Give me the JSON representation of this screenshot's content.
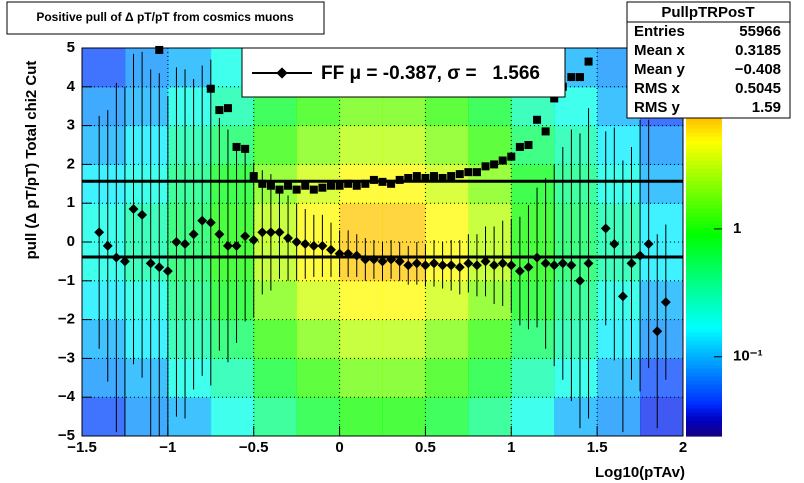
{
  "chart_data": {
    "type": "profile2d",
    "title": "Positive pull of Δ pT/pT from cosmics muons",
    "x_label": "Log10(pTAv)",
    "y_label": "pull (Δ pT/pT)  Total chi2 Cut",
    "xlim": [
      -1.5,
      2
    ],
    "ylim": [
      -5,
      5
    ],
    "xticks": [
      {
        "value": -1.5,
        "label": "−1.5"
      },
      {
        "value": -1,
        "label": "−1"
      },
      {
        "value": -0.5,
        "label": "−0.5"
      },
      0,
      0.5,
      1,
      1.5,
      2
    ],
    "yticks": [
      {
        "value": -5,
        "label": "−5"
      },
      {
        "value": -4,
        "label": "−4"
      },
      {
        "value": -3,
        "label": "−3"
      },
      {
        "value": -2,
        "label": "−2"
      },
      {
        "value": -1,
        "label": "−1"
      },
      0,
      1,
      2,
      3,
      4,
      5
    ],
    "grid": true,
    "zlim": [
      0.024,
      26
    ],
    "zticks": [
      1,
      {
        "value": 0.1,
        "label": "10⁻¹"
      }
    ],
    "log_z": true,
    "heatmap": {
      "x_bins": [
        -1.5,
        -1.25,
        -1,
        -0.75,
        -0.5,
        -0.25,
        0,
        0.25,
        0.5,
        0.75,
        1,
        1.25,
        1.5,
        1.75,
        2
      ],
      "y_bins": [
        -5,
        -4,
        -3,
        -2,
        -1,
        0,
        1,
        2,
        3,
        4,
        5
      ],
      "values": [
        [
          0.05,
          0.08,
          0.1,
          0.2,
          0.4,
          0.7,
          1,
          1,
          0.7,
          0.4,
          0.2,
          0.1,
          0.08,
          0.04
        ],
        [
          0.08,
          0.1,
          0.2,
          0.3,
          0.7,
          1.2,
          1.8,
          1.8,
          1.2,
          0.7,
          0.3,
          0.2,
          0.1,
          0.05
        ],
        [
          0.1,
          0.15,
          0.3,
          0.5,
          1.2,
          2,
          3,
          3,
          2,
          1.2,
          0.5,
          0.3,
          0.15,
          0.08
        ],
        [
          0.15,
          0.2,
          0.4,
          0.8,
          2,
          3.5,
          5,
          5,
          3.5,
          2,
          0.8,
          0.4,
          0.2,
          0.1
        ],
        [
          0.2,
          0.3,
          0.5,
          1,
          3,
          5,
          7,
          7,
          5,
          3,
          1,
          0.5,
          0.3,
          0.15
        ],
        [
          0.2,
          0.3,
          0.5,
          1,
          3,
          5,
          7,
          7,
          5,
          3,
          1,
          0.5,
          0.3,
          0.15
        ],
        [
          0.15,
          0.2,
          0.4,
          0.8,
          2,
          3.5,
          5,
          5,
          3.5,
          2,
          0.8,
          0.4,
          0.2,
          0.1
        ],
        [
          0.1,
          0.15,
          0.3,
          0.5,
          1.2,
          2,
          3,
          3,
          2,
          1.2,
          0.5,
          0.3,
          0.15,
          0.08
        ],
        [
          0.08,
          0.1,
          0.2,
          0.3,
          0.7,
          1.2,
          1.8,
          1.8,
          1.2,
          0.7,
          0.3,
          0.2,
          0.1,
          0.05
        ],
        [
          0.05,
          0.08,
          0.1,
          0.2,
          0.4,
          0.7,
          1,
          1,
          0.7,
          0.4,
          0.2,
          0.1,
          0.08,
          0.04
        ]
      ]
    },
    "series": [
      {
        "marker": "square",
        "color": "#000000",
        "x": [
          -1.05,
          -0.75,
          -0.7,
          -0.65,
          -0.6,
          -0.55,
          -0.5,
          -0.45,
          -0.4,
          -0.35,
          -0.3,
          -0.25,
          -0.2,
          -0.15,
          -0.1,
          -0.05,
          0,
          0.05,
          0.1,
          0.15,
          0.2,
          0.25,
          0.3,
          0.35,
          0.4,
          0.45,
          0.5,
          0.55,
          0.6,
          0.65,
          0.7,
          0.75,
          0.8,
          0.85,
          0.9,
          0.95,
          1.0,
          1.05,
          1.1,
          1.15,
          1.2,
          1.25,
          1.3,
          1.35,
          1.4,
          1.45
        ],
        "values": [
          4.95,
          3.95,
          3.4,
          3.45,
          2.45,
          2.4,
          1.7,
          1.5,
          1.45,
          1.35,
          1.45,
          1.35,
          1.45,
          1.35,
          1.4,
          1.45,
          1.45,
          1.5,
          1.45,
          1.5,
          1.6,
          1.55,
          1.5,
          1.6,
          1.65,
          1.7,
          1.65,
          1.7,
          1.65,
          1.7,
          1.75,
          1.8,
          1.8,
          1.95,
          2.0,
          2.1,
          2.2,
          2.45,
          2.5,
          3.15,
          2.85,
          3.7,
          4.0,
          4.25,
          4.25,
          4.65
        ]
      },
      {
        "name": "FF μ = -0.387, σ =   1.566",
        "marker": "diamond",
        "color": "#000000",
        "x": [
          -1.4,
          -1.35,
          -1.3,
          -1.25,
          -1.2,
          -1.15,
          -1.1,
          -1.05,
          -1.0,
          -0.95,
          -0.9,
          -0.85,
          -0.8,
          -0.75,
          -0.7,
          -0.65,
          -0.6,
          -0.55,
          -0.5,
          -0.45,
          -0.4,
          -0.35,
          -0.3,
          -0.25,
          -0.2,
          -0.15,
          -0.1,
          -0.05,
          0,
          0.05,
          0.1,
          0.15,
          0.2,
          0.25,
          0.3,
          0.35,
          0.4,
          0.45,
          0.5,
          0.55,
          0.6,
          0.65,
          0.7,
          0.75,
          0.8,
          0.85,
          0.9,
          0.95,
          1.0,
          1.05,
          1.1,
          1.15,
          1.2,
          1.25,
          1.3,
          1.35,
          1.4,
          1.45,
          1.55,
          1.6,
          1.65,
          1.7,
          1.75,
          1.8,
          1.85,
          1.9
        ],
        "values": [
          0.25,
          -0.1,
          -0.4,
          -0.5,
          0.85,
          0.7,
          -0.55,
          -0.65,
          -0.75,
          0,
          -0.05,
          0.2,
          0.55,
          0.5,
          0.2,
          -0.1,
          -0.1,
          0.15,
          0.05,
          0.25,
          0.25,
          0.25,
          0.1,
          0,
          -0.05,
          -0.1,
          -0.1,
          -0.2,
          -0.3,
          -0.3,
          -0.35,
          -0.45,
          -0.45,
          -0.5,
          -0.45,
          -0.5,
          -0.6,
          -0.55,
          -0.6,
          -0.55,
          -0.6,
          -0.6,
          -0.65,
          -0.55,
          -0.6,
          -0.5,
          -0.6,
          -0.55,
          -0.6,
          -0.75,
          -0.65,
          -0.4,
          -0.55,
          -0.6,
          -0.55,
          -0.6,
          -1.0,
          -0.55,
          0.35,
          -0.05,
          -1.4,
          -0.55,
          -0.35,
          -0.05,
          -2.3,
          -1.55
        ],
        "errors": [
          3.0,
          3.5,
          4.5,
          4.5,
          4.0,
          4.2,
          5.0,
          5.0,
          4.5,
          4.5,
          4.5,
          4.0,
          4.0,
          4.2,
          3.0,
          3.0,
          2.5,
          2.2,
          2.0,
          1.6,
          1.5,
          1.2,
          1.1,
          1.0,
          0.9,
          0.8,
          0.8,
          0.7,
          0.6,
          0.6,
          0.55,
          0.55,
          0.5,
          0.5,
          0.5,
          0.5,
          0.5,
          0.55,
          0.55,
          0.6,
          0.6,
          0.65,
          0.7,
          0.75,
          0.8,
          0.9,
          1.0,
          1.1,
          1.2,
          1.4,
          1.6,
          1.8,
          2.2,
          2.6,
          3.0,
          3.5,
          3.8,
          4.0,
          2.5,
          3.0,
          3.5,
          3.0,
          3.5,
          3.2,
          2.5,
          2.0
        ]
      }
    ],
    "reference_lines": [
      1.566,
      -0.387
    ],
    "stats": {
      "title": "PullpTRPosT",
      "rows": [
        [
          "Entries",
          "55966"
        ],
        [
          "Mean x",
          "0.3185"
        ],
        [
          "Mean y",
          "−0.408"
        ],
        [
          "RMS x",
          "0.5045"
        ],
        [
          "RMS y",
          "1.59"
        ]
      ]
    }
  }
}
